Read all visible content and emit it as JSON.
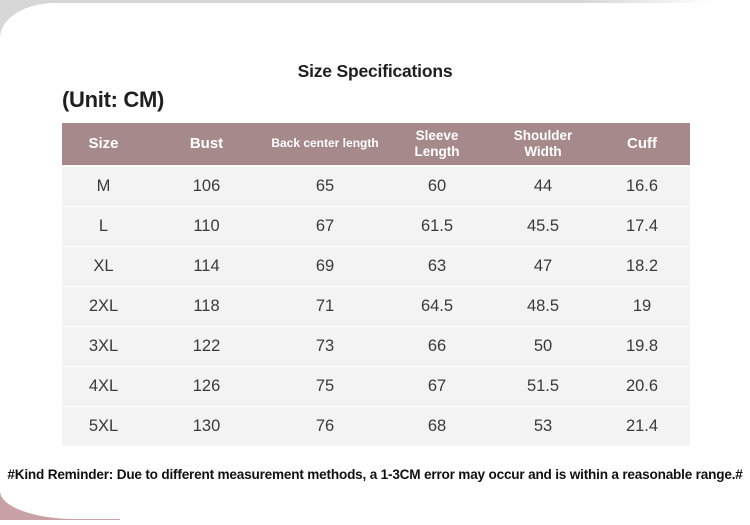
{
  "page": {
    "title": "Size Specifications",
    "unit_label": "(Unit: CM)",
    "note": "#Kind Reminder: Due to different measurement methods, a 1-3CM error may occur and is within a reasonable range.#"
  },
  "table": {
    "columns": [
      "Size",
      "Bust",
      "Back center length",
      "Sleeve\nLength",
      "Shoulder\nWidth",
      "Cuff"
    ],
    "rows": [
      [
        "M",
        "106",
        "65",
        "60",
        "44",
        "16.6"
      ],
      [
        "L",
        "110",
        "67",
        "61.5",
        "45.5",
        "17.4"
      ],
      [
        "XL",
        "114",
        "69",
        "63",
        "47",
        "18.2"
      ],
      [
        "2XL",
        "118",
        "71",
        "64.5",
        "48.5",
        "19"
      ],
      [
        "3XL",
        "122",
        "73",
        "66",
        "50",
        "19.8"
      ],
      [
        "4XL",
        "126",
        "75",
        "67",
        "51.5",
        "20.6"
      ],
      [
        "5XL",
        "130",
        "76",
        "68",
        "53",
        "21.4"
      ]
    ]
  },
  "colors": {
    "header_bg": "#a6898b",
    "header_text": "#ffffff",
    "row_bg": "#f4f3f3",
    "accent_pink": "#c9a2a5",
    "corner_gray": "#d7d7d7",
    "text_dark": "#1f1f1f",
    "text_cell": "#3a3a3a"
  }
}
